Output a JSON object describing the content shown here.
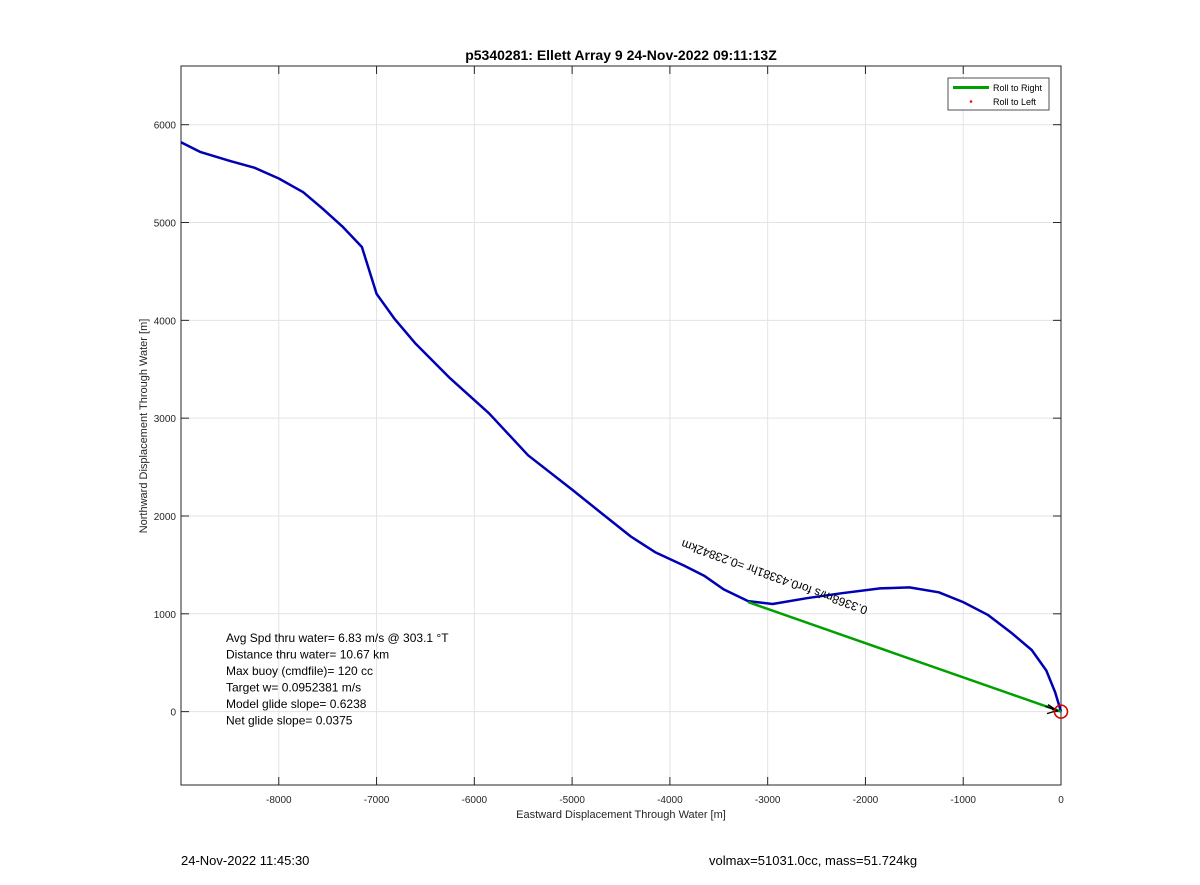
{
  "chart_data": {
    "type": "line",
    "title": "p5340281: Ellett Array 9 24-Nov-2022 09:11:13Z",
    "xlabel": "Eastward Displacement Through Water [m]",
    "ylabel": "Northward Displacement Through Water [m]",
    "xlim": [
      -9000,
      0
    ],
    "ylim": [
      -750,
      6600
    ],
    "xticks": [
      -8000,
      -7000,
      -6000,
      -5000,
      -4000,
      -3000,
      -2000,
      -1000,
      0
    ],
    "yticks": [
      0,
      1000,
      2000,
      3000,
      4000,
      5000,
      6000
    ],
    "grid": true,
    "legend_position": "top-right",
    "legend": [
      {
        "label": "Roll to Right",
        "color": "#00a000",
        "style": "line"
      },
      {
        "label": "Roll to Left",
        "color": "#ff0000",
        "style": "dot"
      }
    ],
    "series": [
      {
        "color": "#0000b4",
        "x": [
          -9000,
          -8800,
          -8500,
          -8250,
          -8000,
          -7750,
          -7550,
          -7350,
          -7150,
          -7000,
          -6820,
          -6600,
          -6250,
          -5850,
          -5450,
          -5000,
          -4700,
          -4400,
          -4150,
          -3850,
          -3650,
          -3450,
          -3200,
          -2950,
          -2600,
          -2250,
          -1850,
          -1550,
          -1250,
          -1000,
          -750,
          -500,
          -300,
          -150,
          -60,
          0
        ],
        "y": [
          5820,
          5720,
          5630,
          5560,
          5450,
          5310,
          5140,
          4960,
          4750,
          4270,
          4020,
          3760,
          3410,
          3050,
          2620,
          2270,
          2030,
          1790,
          1630,
          1490,
          1390,
          1250,
          1130,
          1100,
          1160,
          1210,
          1260,
          1270,
          1220,
          1120,
          990,
          800,
          630,
          420,
          200,
          0
        ]
      },
      {
        "color": "#00a000",
        "x": [
          -3200,
          0
        ],
        "y": [
          1120,
          0
        ]
      }
    ],
    "annotations": {
      "current_label": "0.3368m/s for0.43381hr =0.23842km",
      "current_label_rotation": -20,
      "stats": [
        "Avg Spd thru water=  6.83 m/s @ 303.1 °T",
        "Distance thru water= 10.67 km",
        "Max buoy (cmdfile)= 120 cc",
        "Target w= 0.0952381 m/s",
        "Model glide slope= 0.6238",
        "Net glide slope= 0.0375"
      ]
    }
  },
  "footer": {
    "left": "24-Nov-2022 11:45:30",
    "right": "volmax=51031.0cc, mass=51.724kg"
  }
}
